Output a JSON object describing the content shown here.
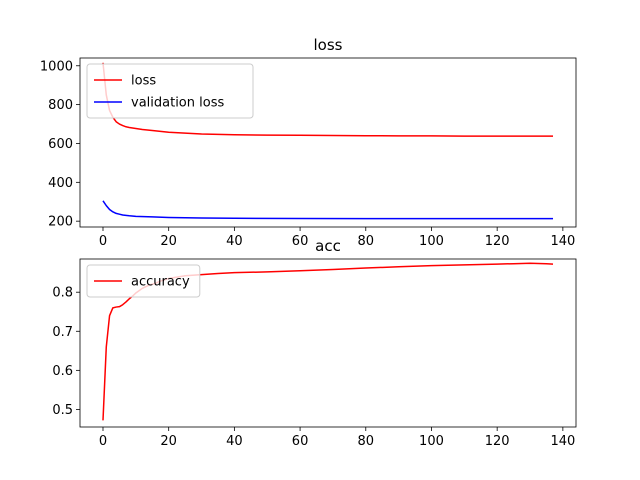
{
  "chart_data": [
    {
      "type": "line",
      "title": "loss",
      "xlabel": "",
      "ylabel": "",
      "xlim": [
        -7,
        144
      ],
      "ylim": [
        170,
        1040
      ],
      "xticks": [
        0,
        20,
        40,
        60,
        80,
        100,
        120,
        140
      ],
      "yticks": [
        200,
        400,
        600,
        800,
        1000
      ],
      "grid": false,
      "legend_position": "top-left",
      "series": [
        {
          "name": "loss",
          "color": "#ff0000",
          "x": [
            0,
            1,
            2,
            3,
            4,
            5,
            6,
            7,
            8,
            10,
            12,
            15,
            20,
            25,
            30,
            40,
            50,
            60,
            70,
            80,
            90,
            100,
            110,
            120,
            130,
            137
          ],
          "y": [
            1015,
            850,
            770,
            735,
            712,
            700,
            692,
            686,
            682,
            677,
            672,
            667,
            658,
            653,
            649,
            645,
            643,
            642,
            641,
            640,
            639,
            639,
            638,
            638,
            638,
            638
          ]
        },
        {
          "name": "validation loss",
          "color": "#0000ff",
          "x": [
            0,
            1,
            2,
            3,
            4,
            5,
            6,
            8,
            10,
            15,
            20,
            30,
            40,
            60,
            80,
            100,
            120,
            137
          ],
          "y": [
            305,
            280,
            260,
            248,
            240,
            236,
            232,
            228,
            225,
            222,
            219,
            216,
            215,
            214,
            213,
            213,
            213,
            213
          ]
        }
      ]
    },
    {
      "type": "line",
      "title": "acc",
      "xlabel": "",
      "ylabel": "",
      "xlim": [
        -7,
        144
      ],
      "ylim": [
        0.455,
        0.885
      ],
      "xticks": [
        0,
        20,
        40,
        60,
        80,
        100,
        120,
        140
      ],
      "yticks": [
        0.5,
        0.6,
        0.7,
        0.8
      ],
      "grid": false,
      "legend_position": "top-left",
      "series": [
        {
          "name": "accuracy",
          "color": "#ff0000",
          "x": [
            0,
            1,
            2,
            3,
            4,
            5,
            6,
            7,
            8,
            9,
            10,
            12,
            14,
            16,
            18,
            20,
            25,
            30,
            35,
            40,
            50,
            60,
            70,
            80,
            90,
            100,
            110,
            120,
            125,
            130,
            135,
            137
          ],
          "y": [
            0.472,
            0.66,
            0.74,
            0.76,
            0.762,
            0.763,
            0.768,
            0.775,
            0.783,
            0.79,
            0.798,
            0.81,
            0.818,
            0.823,
            0.83,
            0.835,
            0.842,
            0.845,
            0.848,
            0.85,
            0.852,
            0.855,
            0.858,
            0.862,
            0.865,
            0.868,
            0.87,
            0.872,
            0.873,
            0.874,
            0.873,
            0.872
          ]
        }
      ]
    }
  ]
}
